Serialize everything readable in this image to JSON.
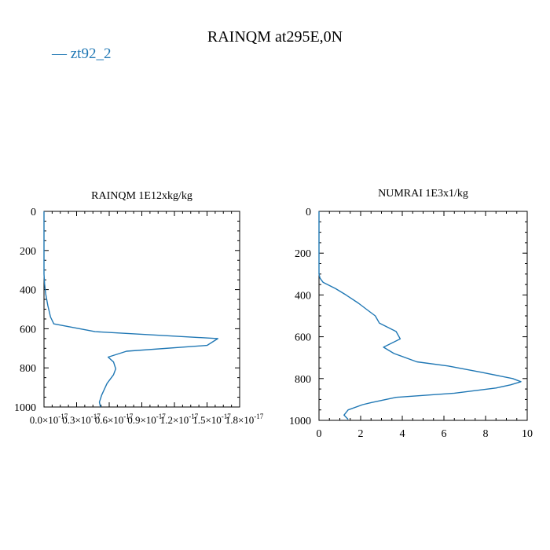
{
  "figure": {
    "title": "RAINQM at295E,0N",
    "legend": {
      "label": "zt92_2",
      "color": "#1f77b4",
      "marker": "—"
    }
  },
  "chart_data": [
    {
      "type": "line",
      "title": "RAINQM  1E12xkg/kg",
      "xlabel": "",
      "ylabel": "",
      "xlim": [
        0.0,
        1.8e-17
      ],
      "ylim": [
        1000,
        0
      ],
      "y_inverted": true,
      "xticks": [
        0.0,
        3e-18,
        6e-18,
        9e-18,
        1.2e-17,
        1.5e-17,
        1.8e-17
      ],
      "xtick_labels": [
        "0.0×10",
        "0.3×10",
        "0.6×10",
        "0.9×10",
        "1.2×10",
        "1.5×10",
        "1.8×10"
      ],
      "xtick_exponents": [
        "-17",
        "-17",
        "-17",
        "-17",
        "-17",
        "-17",
        "-17"
      ],
      "yticks": [
        0,
        200,
        400,
        600,
        800,
        1000
      ],
      "grid": false,
      "series": [
        {
          "name": "zt92_2",
          "color": "#1f77b4",
          "x": [
            0.0,
            0.0,
            5e-20,
            1.5e-19,
            3.5e-19,
            6e-19,
            9e-19,
            4.7e-18,
            1.6e-17,
            1.5e-17,
            7.6e-18,
            5.9e-18,
            6.4e-18,
            6.6e-18,
            6.4e-18,
            5.8e-18,
            5.3e-18,
            5.1e-18,
            5.2e-18
          ],
          "y": [
            0,
            320,
            370,
            420,
            480,
            540,
            575,
            615,
            650,
            685,
            715,
            745,
            770,
            805,
            835,
            880,
            940,
            975,
            1000
          ]
        }
      ]
    },
    {
      "type": "line",
      "title": "NUMRAI  1E3x1/kg",
      "xlabel": "",
      "ylabel": "",
      "xlim": [
        0,
        10
      ],
      "ylim": [
        1000,
        0
      ],
      "y_inverted": true,
      "xticks": [
        0,
        2,
        4,
        6,
        8,
        10
      ],
      "yticks": [
        0,
        200,
        400,
        600,
        800,
        1000
      ],
      "grid": false,
      "series": [
        {
          "name": "zt92_2",
          "color": "#1f77b4",
          "x": [
            0.0,
            0.0,
            0.05,
            0.2,
            0.8,
            1.3,
            1.9,
            2.3,
            2.7,
            2.9,
            3.7,
            3.9,
            3.1,
            3.6,
            4.7,
            6.2,
            7.8,
            9.3,
            9.7,
            9.2,
            8.5,
            6.5,
            3.7,
            2.5,
            2.1,
            1.4,
            1.2,
            1.4
          ],
          "y": [
            0,
            300,
            320,
            340,
            370,
            400,
            440,
            470,
            500,
            535,
            575,
            610,
            650,
            680,
            720,
            740,
            770,
            800,
            815,
            830,
            845,
            870,
            890,
            915,
            925,
            950,
            975,
            995
          ]
        }
      ]
    }
  ]
}
